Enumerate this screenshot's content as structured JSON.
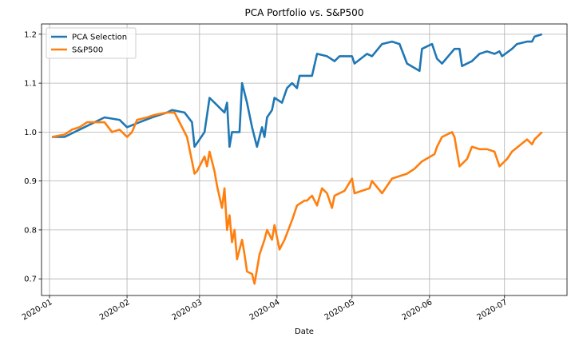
{
  "chart_data": {
    "type": "line",
    "title": "PCA Portfolio vs. S&P500",
    "x_label": "Date",
    "xlim": [
      -3.2,
      207
    ],
    "xticks": [
      {
        "value": 0,
        "label": "2020-01"
      },
      {
        "value": 31,
        "label": "2020-02"
      },
      {
        "value": 60,
        "label": "2020-03"
      },
      {
        "value": 91,
        "label": "2020-04"
      },
      {
        "value": 121,
        "label": "2020-05"
      },
      {
        "value": 152,
        "label": "2020-06"
      },
      {
        "value": 182,
        "label": "2020-07"
      }
    ],
    "ylim": [
      0.666,
      1.221
    ],
    "yticks": [
      0.7,
      0.8,
      0.9,
      {
        "value": 1,
        "label": "1.0"
      },
      1.1,
      1.2
    ],
    "grid": true,
    "legend": "upper left",
    "series": [
      {
        "name": "PCA Selection",
        "color": "#1f77b4",
        "x": [
          1,
          6,
          12,
          22,
          28,
          31,
          36,
          41,
          47,
          49,
          54,
          57,
          58,
          62,
          64,
          66,
          70,
          71,
          72,
          73,
          76,
          77,
          79,
          81,
          83,
          85,
          86,
          87,
          89,
          90,
          93,
          95,
          97,
          99,
          100,
          105,
          107,
          111,
          114,
          116,
          121,
          122,
          127,
          129,
          133,
          137,
          140,
          143,
          148,
          149,
          153,
          155,
          157,
          162,
          164,
          165,
          169,
          172,
          175,
          178,
          180,
          181,
          185,
          187,
          191,
          193,
          194,
          197
        ],
        "values": [
          0.99,
          0.99,
          1.005,
          1.03,
          1.025,
          1.01,
          1.02,
          1.03,
          1.04,
          1.045,
          1.04,
          1.02,
          0.97,
          1.0,
          1.07,
          1.06,
          1.04,
          1.06,
          0.97,
          1.0,
          1.0,
          1.1,
          1.06,
          1.01,
          0.97,
          1.01,
          0.99,
          1.03,
          1.045,
          1.07,
          1.06,
          1.09,
          1.1,
          1.09,
          1.115,
          1.115,
          1.16,
          1.155,
          1.145,
          1.155,
          1.155,
          1.14,
          1.16,
          1.155,
          1.18,
          1.185,
          1.18,
          1.14,
          1.125,
          1.17,
          1.18,
          1.15,
          1.14,
          1.17,
          1.17,
          1.135,
          1.145,
          1.16,
          1.165,
          1.16,
          1.165,
          1.155,
          1.17,
          1.18,
          1.185,
          1.185,
          1.195,
          1.2
        ]
      },
      {
        "name": "S&P500",
        "color": "#ff7f0e",
        "x": [
          1,
          6,
          9,
          12,
          15,
          22,
          25,
          28,
          31,
          33,
          35,
          39,
          42,
          47,
          50,
          52,
          55,
          58,
          59,
          62,
          63,
          64,
          66,
          67,
          69,
          70,
          71,
          72,
          73,
          74,
          75,
          77,
          78,
          79,
          81,
          82,
          84,
          86,
          87,
          89,
          90,
          92,
          94,
          97,
          99,
          102,
          103,
          105,
          107,
          109,
          111,
          113,
          114,
          118,
          121,
          122,
          125,
          128,
          129,
          133,
          137,
          140,
          143,
          146,
          149,
          154,
          155,
          157,
          161,
          162,
          164,
          167,
          169,
          172,
          175,
          178,
          180,
          183,
          185,
          191,
          193,
          194,
          197
        ],
        "values": [
          0.99,
          0.995,
          1.005,
          1.01,
          1.02,
          1.02,
          1.0,
          1.005,
          0.99,
          1.0,
          1.025,
          1.03,
          1.035,
          1.04,
          1.04,
          1.02,
          0.99,
          0.915,
          0.92,
          0.95,
          0.93,
          0.96,
          0.92,
          0.89,
          0.845,
          0.885,
          0.8,
          0.83,
          0.775,
          0.8,
          0.74,
          0.78,
          0.75,
          0.715,
          0.71,
          0.69,
          0.75,
          0.78,
          0.8,
          0.78,
          0.81,
          0.76,
          0.78,
          0.82,
          0.85,
          0.86,
          0.86,
          0.87,
          0.85,
          0.885,
          0.875,
          0.845,
          0.87,
          0.88,
          0.905,
          0.875,
          0.88,
          0.885,
          0.9,
          0.875,
          0.905,
          0.91,
          0.915,
          0.925,
          0.94,
          0.955,
          0.97,
          0.99,
          1.0,
          0.99,
          0.93,
          0.945,
          0.97,
          0.965,
          0.965,
          0.96,
          0.93,
          0.945,
          0.96,
          0.985,
          0.975,
          0.985,
          1.0
        ]
      }
    ]
  }
}
